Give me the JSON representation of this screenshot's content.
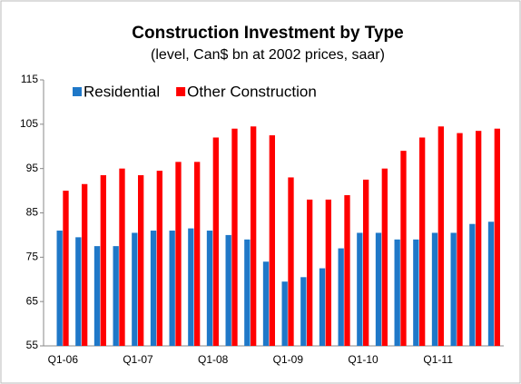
{
  "chart_data": {
    "type": "bar",
    "title": "Construction Investment by Type",
    "subtitle": "(level, Can$ bn at 2002 prices, saar)",
    "categories": [
      "Q1-06",
      null,
      null,
      null,
      "Q1-07",
      null,
      null,
      null,
      "Q1-08",
      null,
      null,
      null,
      "Q1-09",
      null,
      null,
      null,
      "Q1-10",
      null,
      null,
      null,
      "Q1-11",
      null,
      null,
      null
    ],
    "series": [
      {
        "name": "Residential",
        "color": "#1f78c8",
        "values": [
          81,
          79.5,
          77.5,
          77.5,
          80.5,
          81,
          81,
          81.5,
          81,
          80,
          79,
          74,
          69.5,
          70.5,
          72.5,
          77,
          80.5,
          80.5,
          79,
          79,
          80.5,
          80.5,
          82.5,
          83
        ]
      },
      {
        "name": "Other Construction",
        "color": "#ff0000",
        "values": [
          90,
          91.5,
          93.5,
          95,
          93.5,
          94.5,
          96.5,
          96.5,
          102,
          104,
          104.5,
          102.5,
          93,
          88,
          88,
          89,
          92.5,
          95,
          99,
          102,
          104.5,
          103,
          103.5,
          104
        ]
      }
    ],
    "ylim": [
      55,
      115
    ],
    "yticks": [
      55,
      65,
      75,
      85,
      95,
      105,
      115
    ],
    "legend": "top-left"
  }
}
